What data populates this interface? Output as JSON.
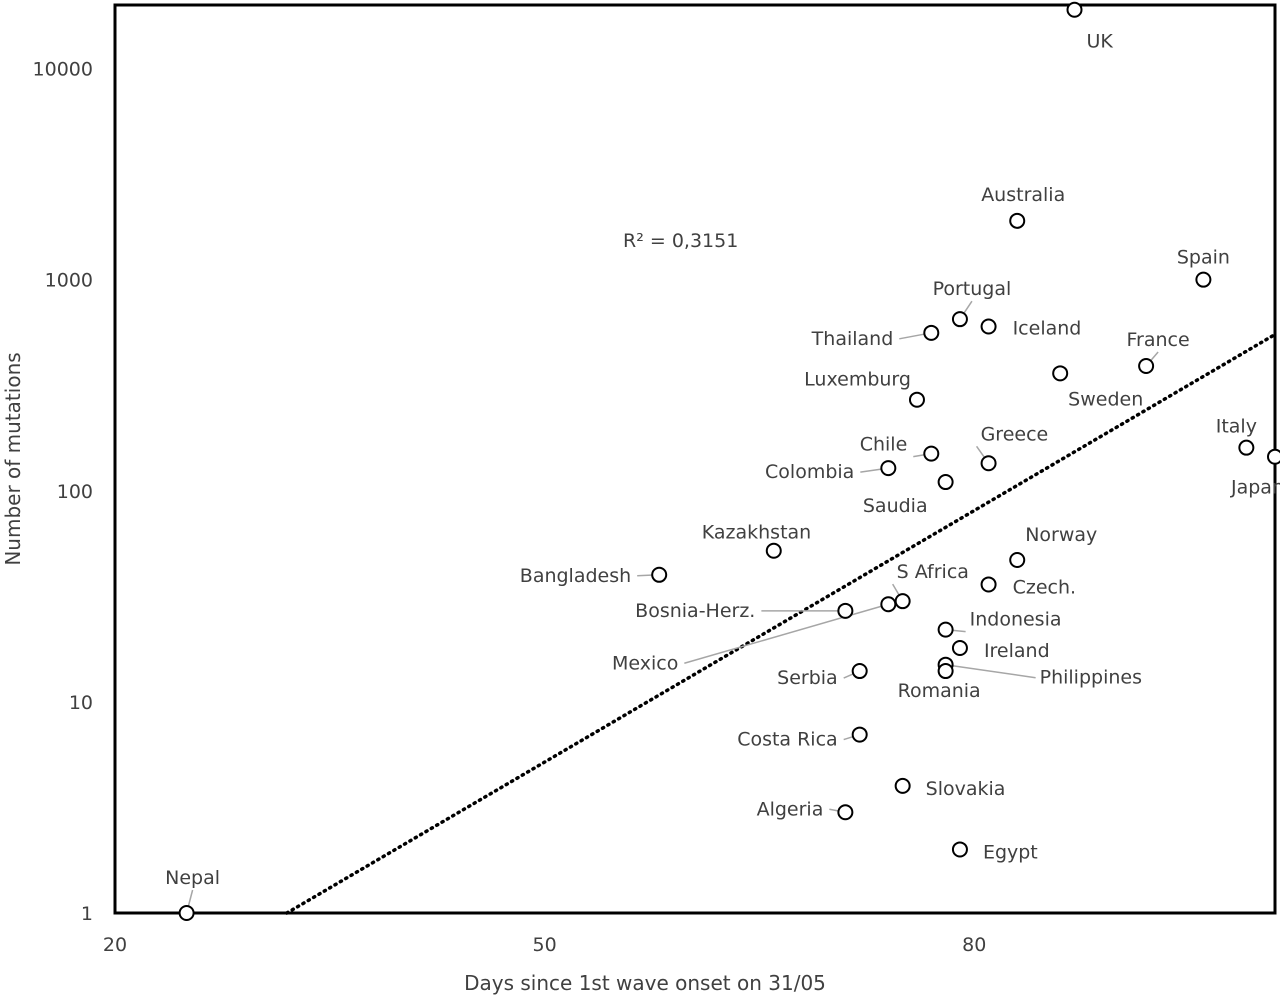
{
  "chart_data": {
    "type": "scatter",
    "title": "",
    "xlabel": "Days since 1st wave onset on 31/05",
    "ylabel": "Number of mutations",
    "xlim": [
      20,
      101
    ],
    "ylim": [
      1,
      20000
    ],
    "y_scale": "log",
    "x_ticks": [
      "20",
      "50",
      "80"
    ],
    "x_tick_values": [
      20,
      50,
      80
    ],
    "y_ticks": [
      "1",
      "10",
      "100",
      "1000",
      "10000"
    ],
    "y_tick_values": [
      1,
      10,
      100,
      1000,
      10000
    ],
    "grid": false,
    "legend": "none",
    "annotation": "R² = 0,3151",
    "trendline": {
      "style": "dotted",
      "x": [
        32,
        101
      ],
      "y": [
        1,
        550
      ]
    },
    "colors": {
      "marker": "#000000",
      "trendline": "#000000",
      "text": "#404040",
      "leader": "#a6a6a6",
      "axis": "#000000"
    },
    "points": [
      {
        "label": "UK",
        "x": 87,
        "y": 19000
      },
      {
        "label": "Australia",
        "x": 83,
        "y": 1900
      },
      {
        "label": "Spain",
        "x": 96,
        "y": 1000
      },
      {
        "label": "Portugal",
        "x": 79,
        "y": 650
      },
      {
        "label": "Iceland",
        "x": 81,
        "y": 600
      },
      {
        "label": "Thailand",
        "x": 77,
        "y": 560
      },
      {
        "label": "France",
        "x": 92,
        "y": 390
      },
      {
        "label": "Sweden",
        "x": 86,
        "y": 360
      },
      {
        "label": "Luxemburg",
        "x": 76,
        "y": 270
      },
      {
        "label": "Italy",
        "x": 99,
        "y": 160
      },
      {
        "label": "Chile",
        "x": 77,
        "y": 150
      },
      {
        "label": "Japan",
        "x": 101,
        "y": 145
      },
      {
        "label": "Greece",
        "x": 81,
        "y": 135
      },
      {
        "label": "Colombia",
        "x": 74,
        "y": 128
      },
      {
        "label": "Saudia",
        "x": 78,
        "y": 110
      },
      {
        "label": "Kazakhstan",
        "x": 66,
        "y": 52
      },
      {
        "label": "Norway",
        "x": 83,
        "y": 47
      },
      {
        "label": "Bangladesh",
        "x": 58,
        "y": 40
      },
      {
        "label": "Czech.",
        "x": 81,
        "y": 36
      },
      {
        "label": "S Africa",
        "x": 75,
        "y": 30
      },
      {
        "label": "Mexico",
        "x": 74,
        "y": 29
      },
      {
        "label": "Bosnia-Herz.",
        "x": 71,
        "y": 27
      },
      {
        "label": "Indonesia",
        "x": 78,
        "y": 22
      },
      {
        "label": "Ireland",
        "x": 79,
        "y": 18
      },
      {
        "label": "Philippines",
        "x": 78,
        "y": 15
      },
      {
        "label": "Romania",
        "x": 78,
        "y": 14
      },
      {
        "label": "Serbia",
        "x": 72,
        "y": 14
      },
      {
        "label": "Costa Rica",
        "x": 72,
        "y": 7
      },
      {
        "label": "Slovakia",
        "x": 75,
        "y": 4
      },
      {
        "label": "Algeria",
        "x": 71,
        "y": 3
      },
      {
        "label": "Egypt",
        "x": 79,
        "y": 2
      },
      {
        "label": "Nepal",
        "x": 25,
        "y": 1
      }
    ]
  }
}
